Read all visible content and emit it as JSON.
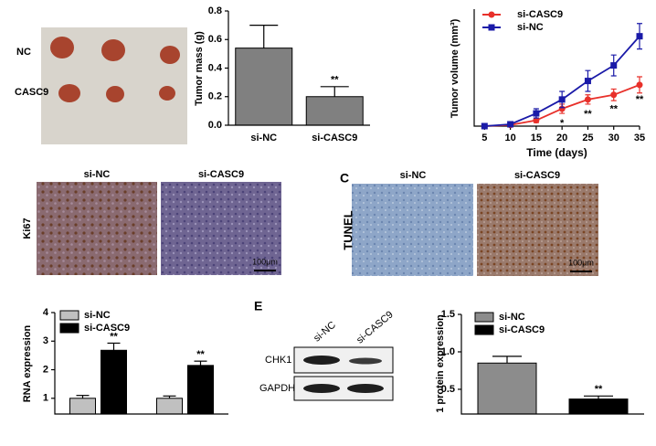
{
  "figure": {
    "tumor_photo": {
      "labels": [
        "NC",
        "CASC9"
      ]
    },
    "ihc_ki67": {
      "columns": [
        "si-NC",
        "si-CASC9"
      ],
      "row_label": "Ki67",
      "scale_bar": "100μm"
    },
    "panel_c": {
      "label": "C",
      "columns": [
        "si-NC",
        "si-CASC9"
      ],
      "row_label": "TUNEL",
      "scale_bar": "100μm"
    },
    "panel_e": {
      "label": "E",
      "columns": [
        "si-NC",
        "si-CASC9"
      ],
      "rows": [
        "CHK1",
        "GAPDH"
      ]
    }
  },
  "chart_data": [
    {
      "type": "bar",
      "ylabel": "Tumor mass (g)",
      "categories": [
        "si-NC",
        "si-CASC9"
      ],
      "values": [
        0.54,
        0.2
      ],
      "errors": [
        0.16,
        0.07
      ],
      "significance": [
        null,
        "**"
      ],
      "color": "#808080",
      "ylim": [
        0,
        0.8
      ],
      "yticks": [
        {
          "value": 0,
          "label": "0.0"
        },
        0.2,
        0.4,
        0.6,
        0.8
      ]
    },
    {
      "type": "line",
      "ylabel": "Tumor volume (mm³)",
      "xlabel": "Time (days)",
      "x": [
        5,
        10,
        15,
        20,
        25,
        30,
        35
      ],
      "xlim": [
        3,
        35
      ],
      "xticks": [
        5,
        10,
        15,
        20,
        25,
        30,
        35
      ],
      "ylim": [
        0,
        505
      ],
      "series": [
        {
          "name": "si-CASC9",
          "color": "#e8302a",
          "marker": "circle",
          "values": [
            0,
            5,
            25,
            75,
            115,
            135,
            178
          ],
          "errors": [
            3,
            5,
            10,
            20,
            20,
            25,
            35
          ],
          "significance": [
            null,
            null,
            null,
            "*",
            "**",
            "**",
            "**"
          ]
        },
        {
          "name": "si-NC",
          "color": "#1a1aa8",
          "marker": "square",
          "values": [
            0,
            8,
            55,
            115,
            195,
            262,
            388
          ],
          "errors": [
            3,
            8,
            20,
            35,
            45,
            45,
            55
          ]
        }
      ]
    },
    {
      "type": "bar",
      "ylabel": "RNA expression",
      "categories": [
        null,
        null
      ],
      "ylim": [
        0.45,
        4
      ],
      "yticks": [
        1,
        2,
        3,
        4
      ],
      "series": [
        {
          "name": "si-NC",
          "color": "#c0c0c0",
          "values": [
            1,
            1
          ],
          "errors": [
            0.1,
            0.08
          ]
        },
        {
          "name": "si-CASC9",
          "color": "#000000",
          "values": [
            2.68,
            2.15
          ],
          "errors": [
            0.25,
            0.15
          ],
          "significance": [
            "**",
            "**"
          ]
        }
      ]
    },
    {
      "type": "bar",
      "ylabel": "1 protein expression",
      "categories": [
        null,
        null
      ],
      "ylim": [
        0.17,
        1.5
      ],
      "yticks": [
        0.5,
        {
          "value": 1,
          "label": "1.0"
        },
        1.5
      ],
      "series": [
        {
          "name": "si-NC",
          "color": "#8c8c8c",
          "values": [
            0.85,
            null
          ],
          "errors": [
            0.09,
            null
          ]
        },
        {
          "name": "si-CASC9",
          "color": "#000000",
          "values": [
            null,
            0.37
          ],
          "errors": [
            null,
            0.04
          ],
          "significance": [
            null,
            "**"
          ]
        }
      ]
    }
  ]
}
